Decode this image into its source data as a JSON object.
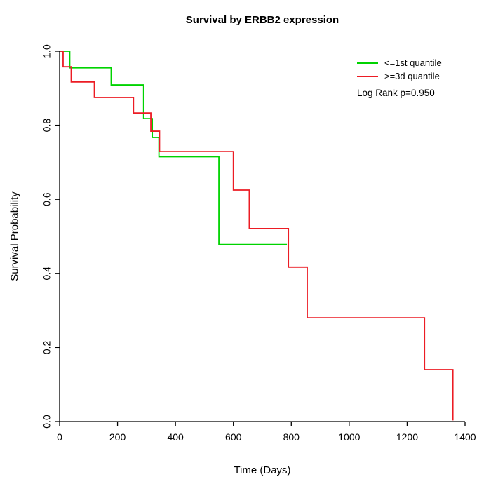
{
  "chart_data": {
    "type": "line",
    "subtype": "kaplan-meier-step",
    "title": "Survival by ERBB2 expression",
    "xlabel": "Time (Days)",
    "ylabel": "Survival Probability",
    "xlim": [
      0,
      1400
    ],
    "ylim": [
      0.0,
      1.0
    ],
    "xticks": [
      0,
      200,
      400,
      600,
      800,
      1000,
      1200,
      1400
    ],
    "xtick_labels": [
      "0",
      "200",
      "400",
      "600",
      "800",
      "1000",
      "1200",
      "1400"
    ],
    "yticks": [
      0.0,
      0.2,
      0.4,
      0.6,
      0.8,
      1.0
    ],
    "ytick_labels": [
      "0.0",
      "0.2",
      "0.4",
      "0.6",
      "0.8",
      "1.0"
    ],
    "grid": false,
    "legend_position": "top-right",
    "annotation": "Log Rank p=0.950",
    "axis_color": "#000000",
    "series": [
      {
        "name": "<=1st quantile",
        "color": "#00d300",
        "step": true,
        "points": [
          [
            0,
            1.0
          ],
          [
            35,
            1.0
          ],
          [
            35,
            0.955
          ],
          [
            178,
            0.955
          ],
          [
            178,
            0.909
          ],
          [
            290,
            0.909
          ],
          [
            290,
            0.818
          ],
          [
            320,
            0.818
          ],
          [
            320,
            0.767
          ],
          [
            343,
            0.767
          ],
          [
            343,
            0.715
          ],
          [
            550,
            0.715
          ],
          [
            550,
            0.478
          ],
          [
            785,
            0.478
          ]
        ]
      },
      {
        "name": ">=3d quantile",
        "color": "#ec1c24",
        "step": true,
        "points": [
          [
            0,
            1.0
          ],
          [
            12,
            1.0
          ],
          [
            12,
            0.958
          ],
          [
            40,
            0.958
          ],
          [
            40,
            0.917
          ],
          [
            120,
            0.917
          ],
          [
            120,
            0.875
          ],
          [
            255,
            0.875
          ],
          [
            255,
            0.833
          ],
          [
            315,
            0.833
          ],
          [
            315,
            0.784
          ],
          [
            345,
            0.784
          ],
          [
            345,
            0.729
          ],
          [
            600,
            0.729
          ],
          [
            600,
            0.625
          ],
          [
            655,
            0.625
          ],
          [
            655,
            0.521
          ],
          [
            790,
            0.521
          ],
          [
            790,
            0.417
          ],
          [
            855,
            0.417
          ],
          [
            855,
            0.28
          ],
          [
            1260,
            0.28
          ],
          [
            1260,
            0.14
          ],
          [
            1358,
            0.14
          ],
          [
            1358,
            0.003
          ]
        ]
      }
    ]
  }
}
